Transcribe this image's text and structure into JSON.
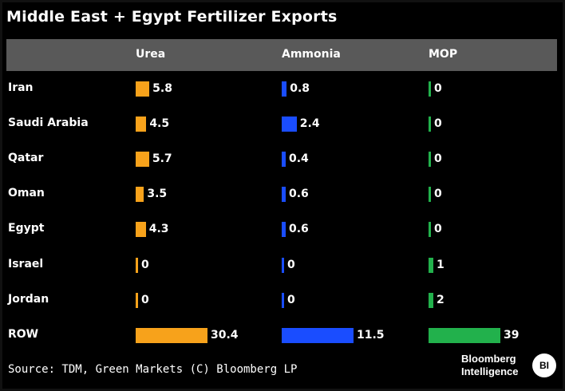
{
  "chart_data": {
    "type": "table",
    "title": "Middle East + Egypt Fertilizer Exports",
    "columns": [
      "Urea",
      "Ammonia",
      "MOP"
    ],
    "series_colors": [
      "#f7a21b",
      "#1a4dff",
      "#22b14c"
    ],
    "rows": [
      {
        "label": "Iran",
        "values": [
          5.8,
          0.8,
          0
        ],
        "labels": [
          "5.8",
          "0.8",
          "0"
        ]
      },
      {
        "label": "Saudi Arabia",
        "values": [
          4.5,
          2.4,
          0
        ],
        "labels": [
          "4.5",
          "2.4",
          "0"
        ]
      },
      {
        "label": "Qatar",
        "values": [
          5.7,
          0.4,
          0
        ],
        "labels": [
          "5.7",
          "0.4",
          "0"
        ]
      },
      {
        "label": "Oman",
        "values": [
          3.5,
          0.6,
          0
        ],
        "labels": [
          "3.5",
          "0.6",
          "0"
        ]
      },
      {
        "label": "Egypt",
        "values": [
          4.3,
          0.6,
          0
        ],
        "labels": [
          "4.3",
          "0.6",
          "0"
        ]
      },
      {
        "label": "Israel",
        "values": [
          0,
          0,
          1
        ],
        "labels": [
          "0",
          "0",
          "1"
        ]
      },
      {
        "label": "Jordan",
        "values": [
          0,
          0,
          2
        ],
        "labels": [
          "0",
          "0",
          "2"
        ]
      },
      {
        "label": "ROW",
        "values": [
          30.4,
          11.5,
          39
        ],
        "labels": [
          "30.4",
          "11.5",
          "39"
        ]
      }
    ],
    "source": "Source: TDM, Green Markets (C) Bloomberg LP"
  },
  "branding": {
    "line1": "Bloomberg",
    "line2": "Intelligence",
    "icon_text": "BI"
  }
}
